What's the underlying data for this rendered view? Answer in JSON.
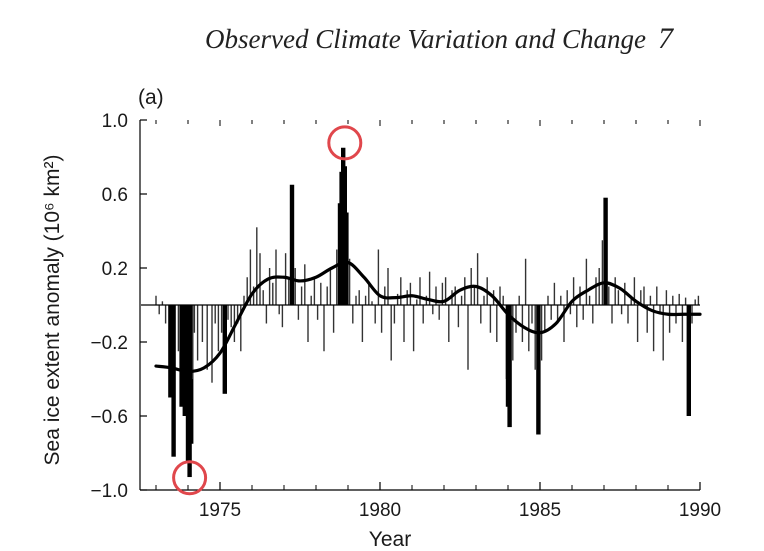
{
  "header": {
    "title": "Observed Climate Variation and Change",
    "page_number": "7"
  },
  "chart_data": {
    "type": "bar",
    "panel_label": "(a)",
    "xlabel": "Year",
    "ylabel": "Sea ice extent anomaly (10⁶ km²)",
    "xlim": [
      1972.5,
      1990
    ],
    "ylim": [
      -1.0,
      1.0
    ],
    "x_ticks": [
      1975,
      1980,
      1985,
      1990
    ],
    "x_tick_labels": [
      "1975",
      "1980",
      "1985",
      "1990"
    ],
    "y_ticks": [
      1.0,
      0.6,
      0.2,
      -0.2,
      -0.6,
      -1.0
    ],
    "y_tick_labels": [
      "1.0",
      "0.6",
      "0.2",
      "−0.2",
      "−0.6",
      "−1.0"
    ],
    "series": [
      {
        "kind": "bar",
        "x": [
          1973.0,
          1973.1,
          1973.2,
          1973.3,
          1973.45,
          1973.55,
          1973.7,
          1973.8,
          1973.9,
          1974.0,
          1974.05,
          1974.1,
          1974.15,
          1974.2,
          1974.3,
          1974.45,
          1974.6,
          1974.75,
          1974.85,
          1974.95,
          1975.05,
          1975.15,
          1975.25,
          1975.35,
          1975.45,
          1975.55,
          1975.65,
          1975.75,
          1975.85,
          1975.95,
          1976.05,
          1976.15,
          1976.25,
          1976.35,
          1976.45,
          1976.55,
          1976.65,
          1976.75,
          1976.85,
          1976.95,
          1977.05,
          1977.15,
          1977.25,
          1977.35,
          1977.45,
          1977.55,
          1977.65,
          1977.75,
          1977.85,
          1977.95,
          1978.05,
          1978.15,
          1978.25,
          1978.35,
          1978.45,
          1978.55,
          1978.65,
          1978.75,
          1978.8,
          1978.85,
          1978.9,
          1978.95,
          1979.05,
          1979.15,
          1979.25,
          1979.35,
          1979.45,
          1979.55,
          1979.65,
          1979.75,
          1979.85,
          1979.95,
          1980.05,
          1980.15,
          1980.25,
          1980.35,
          1980.45,
          1980.55,
          1980.65,
          1980.75,
          1980.85,
          1980.95,
          1981.05,
          1981.15,
          1981.25,
          1981.35,
          1981.45,
          1981.55,
          1981.65,
          1981.75,
          1981.85,
          1981.95,
          1982.05,
          1982.15,
          1982.25,
          1982.35,
          1982.45,
          1982.55,
          1982.65,
          1982.75,
          1982.85,
          1982.95,
          1983.05,
          1983.15,
          1983.25,
          1983.35,
          1983.45,
          1983.55,
          1983.65,
          1983.75,
          1983.85,
          1983.95,
          1984.0,
          1984.05,
          1984.15,
          1984.25,
          1984.35,
          1984.45,
          1984.55,
          1984.65,
          1984.75,
          1984.85,
          1984.95,
          1985.05,
          1985.15,
          1985.25,
          1985.35,
          1985.45,
          1985.55,
          1985.65,
          1985.75,
          1985.85,
          1985.95,
          1986.05,
          1986.15,
          1986.25,
          1986.35,
          1986.45,
          1986.55,
          1986.65,
          1986.75,
          1986.85,
          1986.95,
          1987.05,
          1987.15,
          1987.25,
          1987.35,
          1987.45,
          1987.55,
          1987.65,
          1987.75,
          1987.85,
          1987.95,
          1988.05,
          1988.15,
          1988.25,
          1988.35,
          1988.45,
          1988.55,
          1988.65,
          1988.75,
          1988.85,
          1988.95,
          1989.05,
          1989.15,
          1989.25,
          1989.35,
          1989.45,
          1989.55,
          1989.65,
          1989.75,
          1989.85,
          1989.95
        ],
        "values": [
          0.05,
          -0.05,
          0.02,
          -0.1,
          -0.5,
          -0.82,
          -0.25,
          -0.55,
          -0.6,
          -0.85,
          -0.93,
          -0.75,
          -0.4,
          -0.15,
          -0.3,
          -0.2,
          -0.35,
          -0.42,
          -0.1,
          -0.25,
          -0.15,
          -0.48,
          -0.08,
          -0.12,
          -0.2,
          -0.1,
          -0.25,
          0.05,
          0.15,
          0.3,
          0.1,
          0.42,
          0.28,
          0.08,
          -0.1,
          0.2,
          0.12,
          0.3,
          -0.05,
          -0.12,
          0.28,
          0.15,
          0.65,
          0.2,
          -0.08,
          0.1,
          0.22,
          -0.2,
          0.05,
          0.15,
          -0.08,
          0.12,
          -0.25,
          0.1,
          0.2,
          -0.15,
          0.3,
          0.55,
          0.72,
          0.85,
          0.75,
          0.5,
          0.25,
          -0.1,
          0.05,
          0.08,
          -0.2,
          0.05,
          0.12,
          0.02,
          -0.1,
          0.3,
          -0.15,
          0.1,
          0.2,
          -0.3,
          -0.1,
          0.06,
          0.15,
          -0.2,
          0.08,
          0.12,
          -0.25,
          0.03,
          0.15,
          -0.1,
          0.05,
          0.18,
          -0.05,
          0.1,
          -0.08,
          0.12,
          0.15,
          -0.2,
          0.08,
          0.1,
          -0.12,
          0.05,
          0.15,
          -0.35,
          0.2,
          0.1,
          0.28,
          -0.1,
          0.05,
          0.15,
          -0.15,
          0.08,
          -0.2,
          0.1,
          0.05,
          -0.4,
          -0.55,
          -0.66,
          -0.3,
          -0.15,
          0.05,
          -0.2,
          0.25,
          -0.25,
          -0.1,
          -0.35,
          -0.7,
          -0.3,
          -0.15,
          0.05,
          -0.08,
          0.12,
          -0.1,
          0.05,
          -0.2,
          0.08,
          -0.05,
          0.15,
          -0.12,
          0.1,
          -0.08,
          0.25,
          0.05,
          -0.1,
          0.15,
          0.2,
          0.35,
          0.58,
          0.1,
          -0.1,
          0.15,
          0.08,
          -0.05,
          0.12,
          -0.1,
          0.05,
          0.15,
          -0.2,
          0.08,
          0.1,
          -0.15,
          0.05,
          -0.25,
          0.1,
          -0.05,
          -0.3,
          0.08,
          -0.15,
          0.05,
          -0.1,
          0.06,
          -0.2,
          0.04,
          -0.6,
          -0.1,
          0.03,
          0.05
        ]
      },
      {
        "kind": "line",
        "x": [
          1973.0,
          1973.5,
          1974.0,
          1974.5,
          1975.0,
          1975.5,
          1976.0,
          1976.5,
          1977.0,
          1977.5,
          1978.0,
          1978.5,
          1979.0,
          1979.5,
          1980.0,
          1980.5,
          1981.0,
          1981.5,
          1982.0,
          1982.5,
          1983.0,
          1983.5,
          1984.0,
          1984.5,
          1985.0,
          1985.5,
          1986.0,
          1986.5,
          1987.0,
          1987.5,
          1988.0,
          1988.5,
          1989.0,
          1989.5,
          1990.0
        ],
        "values": [
          -0.33,
          -0.34,
          -0.36,
          -0.34,
          -0.26,
          -0.1,
          0.06,
          0.14,
          0.15,
          0.13,
          0.15,
          0.2,
          0.23,
          0.15,
          0.05,
          0.04,
          0.05,
          0.03,
          0.02,
          0.08,
          0.1,
          0.05,
          -0.05,
          -0.12,
          -0.15,
          -0.1,
          0.02,
          0.08,
          0.12,
          0.09,
          0.02,
          -0.03,
          -0.05,
          -0.05,
          -0.05
        ]
      }
    ],
    "highlights": [
      {
        "x": 1978.9,
        "y": 0.86
      },
      {
        "x": 1974.05,
        "y": -0.95
      }
    ]
  }
}
